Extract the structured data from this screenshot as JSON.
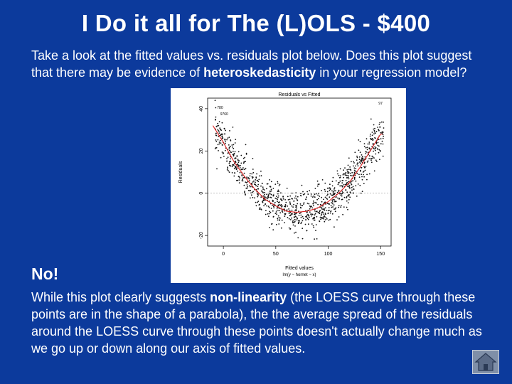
{
  "slide": {
    "title": "I Do it all for The (L)OLS - $400",
    "question": {
      "part1": "Take a look at the fitted values vs. residuals plot below. Does this plot suggest that there may be evidence of ",
      "emphasis": "heteroskedasticity",
      "part2": " in your regression model?"
    },
    "answer": "No!",
    "explanation": {
      "part1": "While this plot clearly suggests ",
      "emphasis": "non-linearity",
      "part2": " (the LOESS curve through these points are in the shape of a parabola), the the average spread of the residuals around the LOESS curve through these points doesn't actually change much as we go up or down along our axis of fitted values."
    },
    "home_icon": "home-icon"
  },
  "chart_data": {
    "type": "scatter",
    "title": "Residuals vs Fitted",
    "xlabel": "Fitted values",
    "xlabel_sub": "lm(y ~ hornet ~ x)",
    "ylabel": "Residuals",
    "xlim": [
      -15,
      160
    ],
    "ylim": [
      -25,
      45
    ],
    "x_ticks": [
      "0",
      "50",
      "100",
      "150"
    ],
    "x_tick_values": [
      0,
      50,
      100,
      150
    ],
    "y_ticks": [
      "-20",
      "0",
      "20",
      "40"
    ],
    "y_tick_values": [
      -20,
      0,
      20,
      40
    ],
    "point_labels": [
      "780",
      "9760",
      "97"
    ],
    "loess_curve": {
      "x": [
        -10,
        0,
        10,
        20,
        30,
        40,
        50,
        60,
        70,
        80,
        90,
        100,
        110,
        120,
        130,
        140,
        150
      ],
      "y": [
        32,
        24,
        15,
        8,
        2,
        -3,
        -6,
        -8.5,
        -9,
        -8.5,
        -7,
        -4,
        0,
        5,
        12,
        20,
        28
      ]
    },
    "residual_spread": 5,
    "point_count": 1100
  }
}
